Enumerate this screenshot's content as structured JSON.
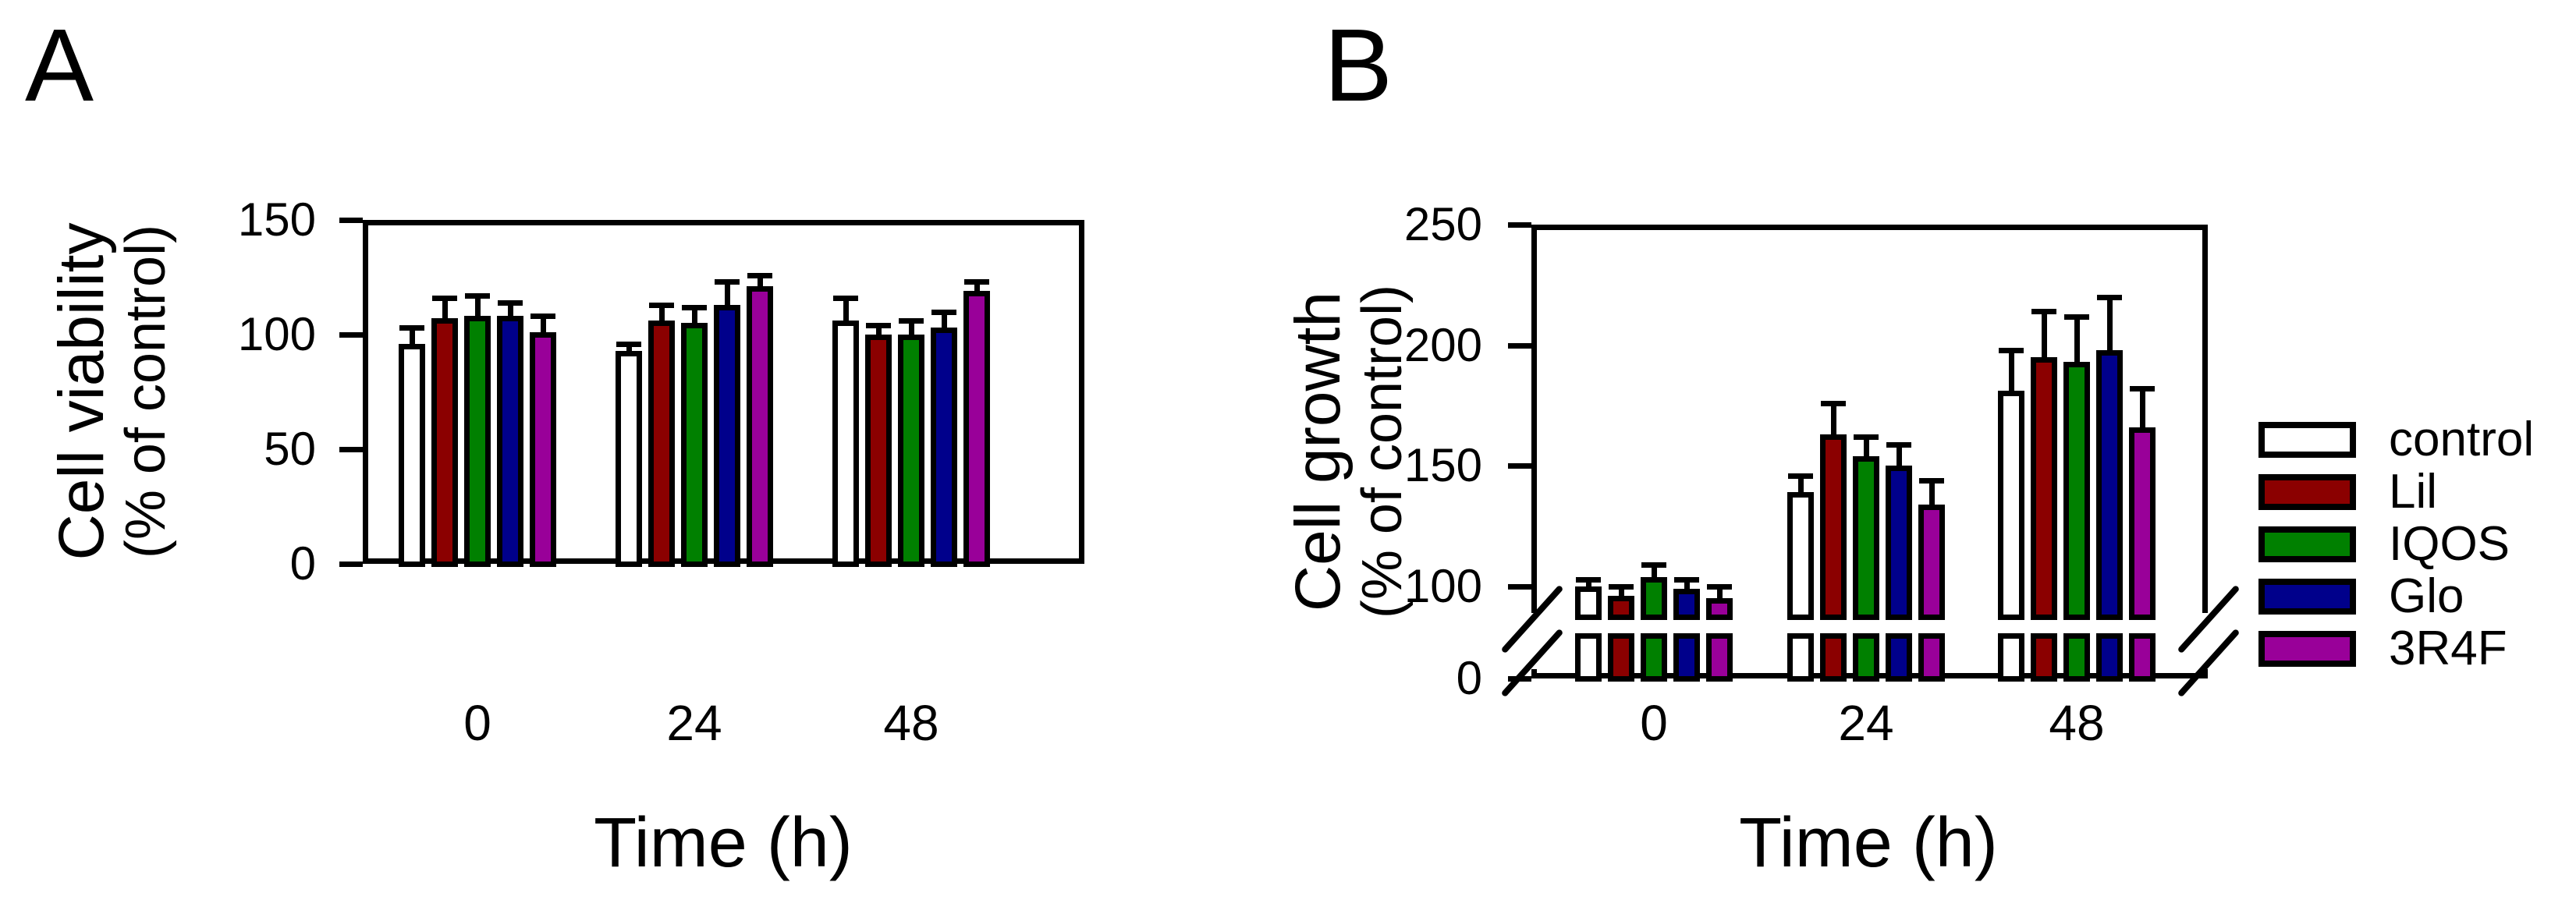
{
  "figure": {
    "background": "#ffffff"
  },
  "panels": [
    {
      "panel_label": "A",
      "ylabel_line1": "Cell viability",
      "ylabel_line2": "(% of control)",
      "xlabel": "Time (h)"
    },
    {
      "panel_label": "B",
      "ylabel_line1": "Cell growth",
      "ylabel_line2": "(% of control)",
      "xlabel": "Time (h)"
    }
  ],
  "legend": {
    "items": [
      {
        "label": "control",
        "color": "#FFFFFF"
      },
      {
        "label": "Lil",
        "color": "#8B0000"
      },
      {
        "label": "IQOS",
        "color": "#008000"
      },
      {
        "label": "Glo",
        "color": "#00008B"
      },
      {
        "label": "3R4F",
        "color": "#990099"
      }
    ]
  },
  "chart_data": [
    {
      "type": "bar",
      "title": "Panel A: Cell viability",
      "categories": [
        "0",
        "24",
        "48"
      ],
      "xlabel": "Time (h)",
      "ylabel": "Cell viability (% of control)",
      "ylim": [
        0,
        150
      ],
      "yticks": [
        0,
        50,
        100,
        150
      ],
      "grid": false,
      "axis_break": null,
      "error_bars": "upper",
      "series": [
        {
          "name": "control",
          "color": "#FFFFFF",
          "values": [
            96,
            93,
            106
          ],
          "errors": [
            7,
            3,
            10
          ]
        },
        {
          "name": "Lil",
          "color": "#8B0000",
          "values": [
            107,
            106,
            100
          ],
          "errors": [
            9,
            7,
            4
          ]
        },
        {
          "name": "IQOS",
          "color": "#008000",
          "values": [
            108,
            105,
            100
          ],
          "errors": [
            9,
            7,
            6
          ]
        },
        {
          "name": "Glo",
          "color": "#00008B",
          "values": [
            108,
            113,
            103
          ],
          "errors": [
            6,
            10,
            7
          ]
        },
        {
          "name": "3R4F",
          "color": "#990099",
          "values": [
            101,
            121,
            119
          ],
          "errors": [
            7,
            5,
            4
          ]
        }
      ]
    },
    {
      "type": "bar",
      "title": "Panel B: Cell growth",
      "categories": [
        "0",
        "24",
        "48"
      ],
      "xlabel": "Time (h)",
      "ylabel": "Cell growth (% of control)",
      "ylim": [
        0,
        250
      ],
      "yticks": [
        0,
        100,
        150,
        200,
        250
      ],
      "grid": false,
      "axis_break": {
        "between": [
          0,
          85
        ]
      },
      "error_bars": "upper",
      "series": [
        {
          "name": "control",
          "color": "#FFFFFF",
          "values": [
            100,
            139,
            181
          ],
          "errors": [
            3,
            7,
            17
          ]
        },
        {
          "name": "Lil",
          "color": "#8B0000",
          "values": [
            96,
            163,
            195
          ],
          "errors": [
            4,
            13,
            19
          ]
        },
        {
          "name": "IQOS",
          "color": "#008000",
          "values": [
            104,
            154,
            193
          ],
          "errors": [
            5,
            8,
            19
          ]
        },
        {
          "name": "Glo",
          "color": "#00008B",
          "values": [
            99,
            150,
            198
          ],
          "errors": [
            4,
            9,
            22
          ]
        },
        {
          "name": "3R4F",
          "color": "#990099",
          "values": [
            95,
            134,
            166
          ],
          "errors": [
            5,
            10,
            16
          ]
        }
      ]
    }
  ]
}
